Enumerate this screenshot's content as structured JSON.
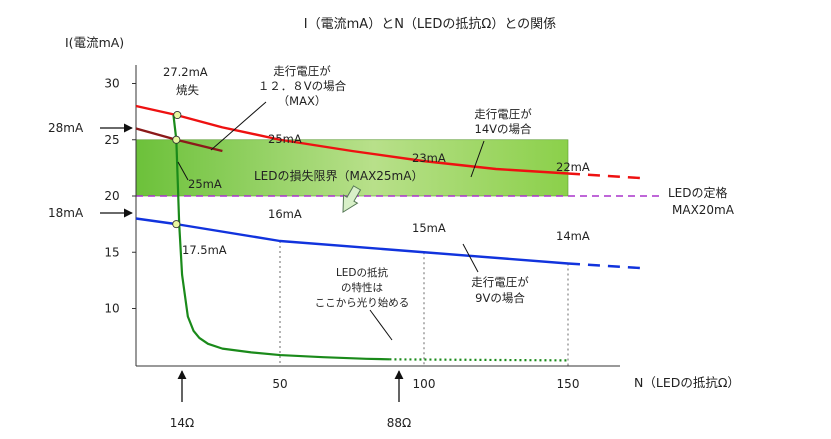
{
  "title": "I（電流mA）とN（LEDの抵抗Ω）との関係",
  "y_axis_title": "I(電流mA)",
  "x_axis_title": "N（LEDの抵抗Ω）",
  "colors": {
    "red": "#ee1111",
    "blue": "#1133dd",
    "green": "#1a8a1a",
    "darkred": "#8b1a1a",
    "purple": "#aa33cc",
    "band_green": "#8bd04a"
  },
  "annotations": {
    "marker_top": "27.2mA",
    "marker_top_sub": "焼失",
    "label_12v": "走行電圧が\n１２．８Vの場合\n（MAX）",
    "label_14v": "走行電圧が\n14Vの場合",
    "label_9v": "走行電圧が\n9Vの場合",
    "val_25": "25mA",
    "val_23": "23mA",
    "val_22": "22mA",
    "val_25b": "25mA",
    "val_16": "16mA",
    "val_15": "15mA",
    "val_14": "14mA",
    "val_175": "17.5mA",
    "band_label": "LEDの損失限界（MAX25mA）",
    "spec_label": "LEDの定格\nMAX20mA",
    "led_note": "LEDの抵抗\nの特性は\nここから光り始める",
    "arrow_28": "28mA",
    "arrow_18": "18mA",
    "arrow_14ohm": "14Ω",
    "arrow_88ohm": "88Ω"
  },
  "chart_data": {
    "type": "line",
    "title": "I（電流mA）とN（LEDの抵抗Ω）との関係",
    "xlabel": "N（LEDの抵抗Ω）",
    "ylabel": "I(電流mA)",
    "xlim": [
      0,
      160
    ],
    "ylim": [
      0,
      32
    ],
    "x_ticks": [
      50,
      100,
      150
    ],
    "y_ticks": [
      10,
      15,
      20,
      25,
      30
    ],
    "bands": [
      {
        "label": "LEDの損失限界（MAX25mA）",
        "y0": 20,
        "y1": 25,
        "x1": 150
      }
    ],
    "series": [
      {
        "name": "走行電圧が14Vの場合",
        "color": "#ee1111",
        "x": [
          0,
          14,
          30,
          50,
          75,
          100,
          125,
          150
        ],
        "y": [
          28,
          27.2,
          26.1,
          25,
          24,
          23.1,
          22.4,
          22
        ],
        "extension": {
          "x": [
            150,
            175
          ],
          "y": [
            22,
            21.6
          ]
        }
      },
      {
        "name": "走行電圧が１２．８Vの場合（MAX）",
        "color": "#8b1a1a",
        "x": [
          0,
          14,
          30
        ],
        "y": [
          26,
          25,
          24
        ]
      },
      {
        "name": "走行電圧が9Vの場合",
        "color": "#1133dd",
        "x": [
          0,
          14,
          50,
          100,
          150
        ],
        "y": [
          18,
          17.5,
          16,
          15,
          14
        ],
        "extension": {
          "x": [
            150,
            175
          ],
          "y": [
            14,
            13.6
          ]
        }
      },
      {
        "name": "LEDの抵抗の特性",
        "color": "#1a8a1a",
        "x": [
          13,
          14,
          15,
          16,
          18,
          20,
          22,
          25,
          30,
          40,
          50,
          65,
          80,
          88
        ],
        "y": [
          27.2,
          25,
          17.5,
          13,
          8.5,
          5.8,
          4.5,
          3.4,
          2.5,
          1.8,
          1.3,
          0.9,
          0.6,
          0.5
        ],
        "extension": {
          "x": [
            88,
            150
          ],
          "y": [
            0.5,
            0.3
          ]
        }
      }
    ],
    "annotation_points": [
      {
        "x": 14,
        "y": 27.2,
        "label": "27.2mA"
      },
      {
        "x": 14,
        "y": 25,
        "label": "25mA"
      },
      {
        "x": 14,
        "y": 17.5,
        "label": "17.5mA"
      }
    ]
  }
}
